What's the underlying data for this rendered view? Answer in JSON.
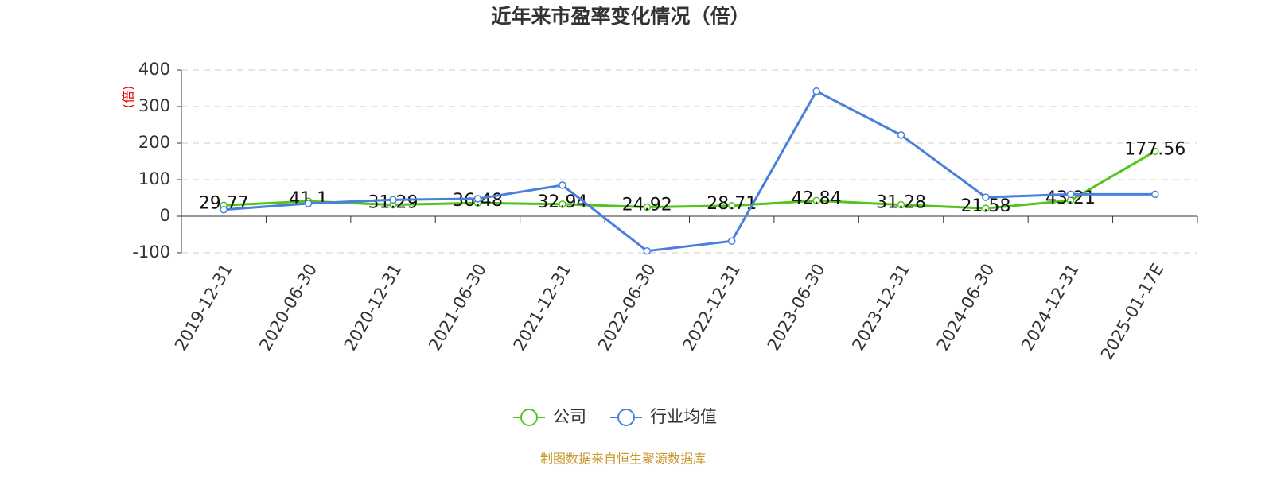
{
  "chart_data": {
    "type": "line",
    "title": "近年来市盈率变化情况（倍）",
    "y_axis_label": "(倍)",
    "categories": [
      "2019-12-31",
      "2020-06-30",
      "2020-12-31",
      "2021-06-30",
      "2021-12-31",
      "2022-06-30",
      "2022-12-31",
      "2023-06-30",
      "2023-12-31",
      "2024-06-30",
      "2024-12-31",
      "2025-01-17E"
    ],
    "series": [
      {
        "name": "公司",
        "color": "#52c41a",
        "values": [
          29.77,
          41.1,
          31.29,
          36.48,
          32.94,
          24.92,
          28.71,
          42.84,
          31.28,
          21.58,
          43.21,
          177.56
        ],
        "show_labels": true
      },
      {
        "name": "行业均值",
        "color": "#4a7fdc",
        "values": [
          18,
          35,
          45,
          48,
          85,
          -95,
          -68,
          342,
          222,
          52,
          60,
          60
        ],
        "show_labels": false
      }
    ],
    "ylim": [
      -100,
      400
    ],
    "yticks": [
      -100,
      0,
      100,
      200,
      300,
      400
    ],
    "grid": true,
    "legend": "bottom",
    "source": "制图数据来自恒生聚源数据库"
  }
}
